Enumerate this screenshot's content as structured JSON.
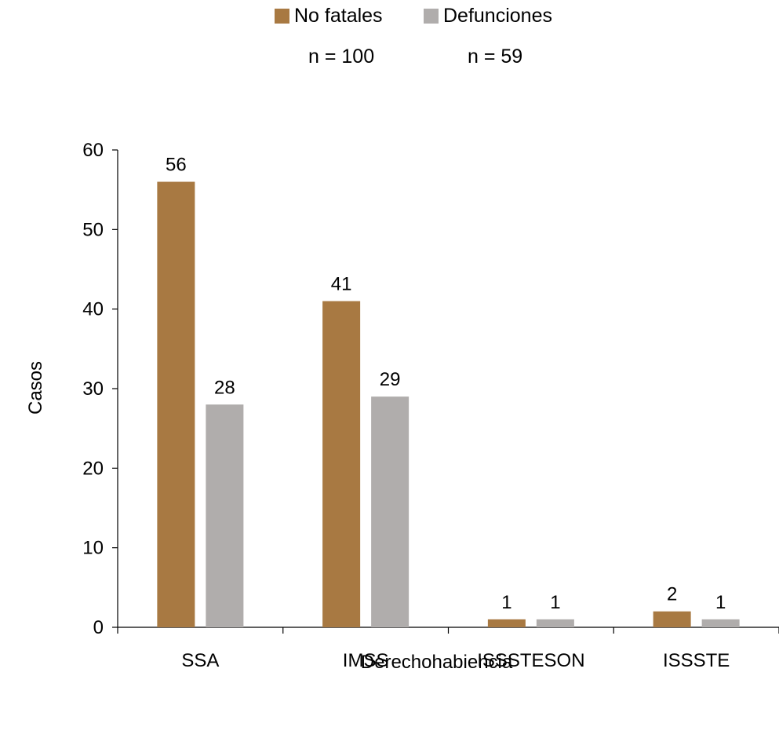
{
  "chart_data": {
    "type": "bar",
    "categories": [
      "SSA",
      "IMSS",
      "ISSSTESON",
      "ISSSTE"
    ],
    "series": [
      {
        "name": "No fatales",
        "values": [
          56,
          41,
          1,
          2
        ],
        "color": "#A87942"
      },
      {
        "name": "Defunciones",
        "values": [
          28,
          29,
          1,
          1
        ],
        "color": "#B0ADAC"
      }
    ],
    "series_counts": [
      "n = 100",
      "n = 59"
    ],
    "title": "",
    "xlabel": "Derechohabiencia",
    "ylabel": "Casos",
    "ylim": [
      0,
      60
    ],
    "yticks": [
      0,
      10,
      20,
      30,
      40,
      50,
      60
    ],
    "grid": false,
    "legend_position": "top-center",
    "data_labels": true
  }
}
